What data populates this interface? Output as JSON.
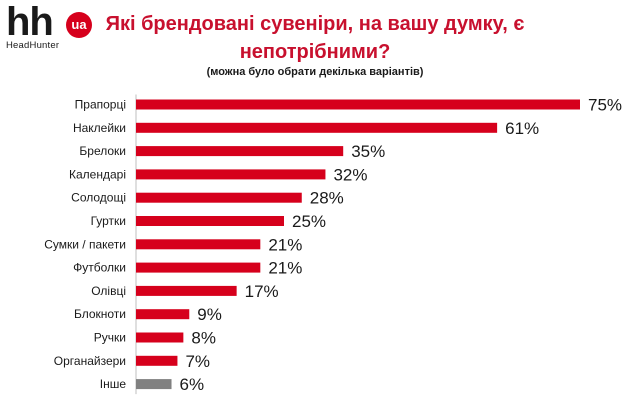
{
  "logo": {
    "mark": "hh",
    "badge": "ua",
    "subtitle": "HeadHunter"
  },
  "colors": {
    "primary_bar": "#d6001c",
    "other_bar": "#808080",
    "title": "#c8102e"
  },
  "chart_data": {
    "type": "bar",
    "orientation": "horizontal",
    "title": "Які брендовані сувеніри, на вашу думку, є непотрібними?",
    "subtitle": "(можна було обрати декілька варіантів)",
    "categories": [
      "Прапорці",
      "Наклейки",
      "Брелоки",
      "Календарі",
      "Солодощі",
      "Гуртки",
      "Сумки / пакети",
      "Футболки",
      "Олівці",
      "Блокноти",
      "Ручки",
      "Органайзери",
      "Інше"
    ],
    "values": [
      75,
      61,
      35,
      32,
      28,
      25,
      21,
      21,
      17,
      9,
      8,
      7,
      6
    ],
    "value_labels": [
      "75%",
      "61%",
      "35%",
      "32%",
      "28%",
      "25%",
      "21%",
      "21%",
      "17%",
      "9%",
      "8%",
      "7%",
      "6%"
    ],
    "unit": "%",
    "xlim": [
      0,
      75
    ],
    "grid": false,
    "legend": "none",
    "highlight_last_color": "#808080"
  }
}
